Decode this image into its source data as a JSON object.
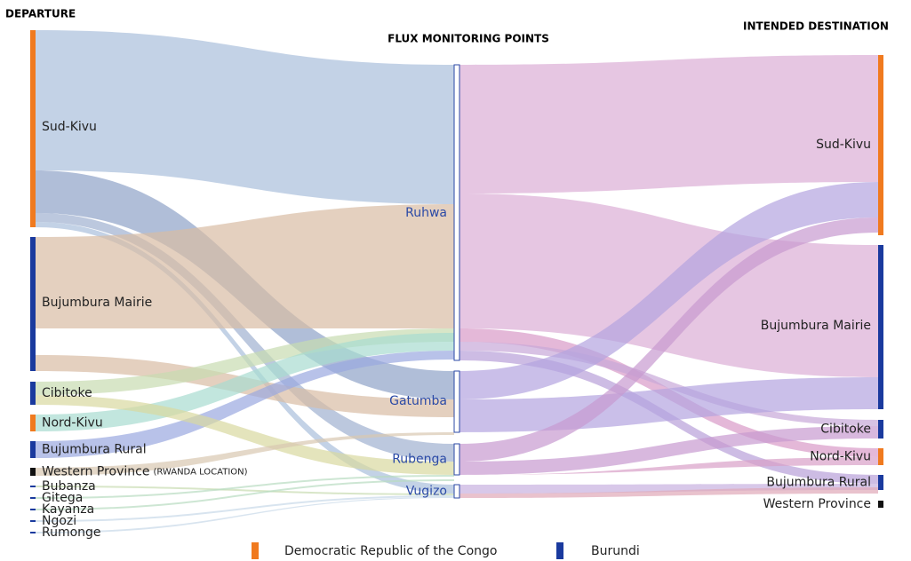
{
  "headers": {
    "departure": "DEPARTURE",
    "monitoring": "FLUX MONITORING POINTS",
    "destination": "INTENDED DESTINATION"
  },
  "departure": [
    "Sud-Kivu",
    "Bujumbura Mairie",
    "Cibitoke",
    "Nord-Kivu",
    "Bujumbura Rural",
    "Western Province",
    "Bubanza",
    "Gitega",
    "Kayanza",
    "Ngozi",
    "Rumonge"
  ],
  "departure_note": "(RWANDA LOCATION)",
  "monitoring": [
    "Ruhwa",
    "Gatumba",
    "Rubenga",
    "Vugizo"
  ],
  "destination": [
    "Sud-Kivu",
    "Bujumbura Mairie",
    "Cibitoke",
    "Nord-Kivu",
    "Bujumbura Rural",
    "Western Province"
  ],
  "legend": [
    "Democratic Republic of the Congo",
    "Burundi"
  ]
}
